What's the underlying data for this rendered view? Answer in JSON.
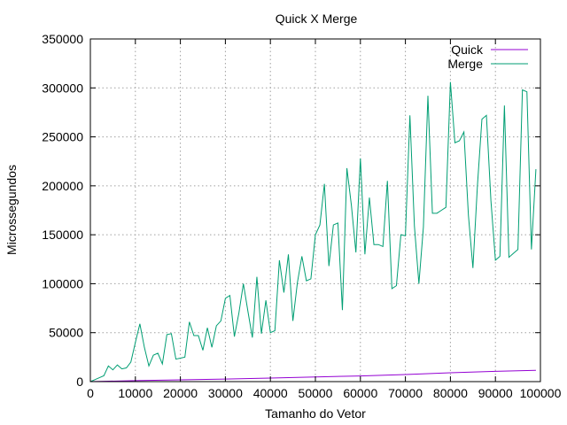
{
  "chart_data": {
    "type": "line",
    "title": "Quick X Merge",
    "xlabel": "Tamanho do Vetor",
    "ylabel": "Microssegundos",
    "xlim": [
      0,
      100000
    ],
    "ylim": [
      0,
      350000
    ],
    "grid": true,
    "legend_position": "top-right",
    "x_ticks": [
      0,
      10000,
      20000,
      30000,
      40000,
      50000,
      60000,
      70000,
      80000,
      90000,
      100000
    ],
    "y_ticks": [
      0,
      50000,
      100000,
      150000,
      200000,
      250000,
      300000,
      350000
    ],
    "series": [
      {
        "name": "Quick",
        "color": "#9400d3",
        "x": [
          0,
          10000,
          20000,
          30000,
          40000,
          50000,
          60000,
          70000,
          80000,
          90000,
          99000
        ],
        "values": [
          0,
          1000,
          1800,
          2600,
          3600,
          4800,
          5800,
          7200,
          9000,
          10500,
          11500
        ]
      },
      {
        "name": "Merge",
        "color": "#009e73",
        "x": [
          0,
          1000,
          2000,
          3000,
          4000,
          5000,
          6000,
          7000,
          8000,
          9000,
          10000,
          11000,
          12000,
          13000,
          14000,
          15000,
          16000,
          17000,
          18000,
          19000,
          20000,
          21000,
          22000,
          23000,
          24000,
          25000,
          26000,
          27000,
          28000,
          29000,
          30000,
          31000,
          32000,
          33000,
          34000,
          35000,
          36000,
          37000,
          38000,
          39000,
          40000,
          41000,
          42000,
          43000,
          44000,
          45000,
          46000,
          47000,
          48000,
          49000,
          50000,
          51000,
          52000,
          53000,
          54000,
          55000,
          56000,
          57000,
          58000,
          59000,
          60000,
          61000,
          62000,
          63000,
          64000,
          65000,
          66000,
          67000,
          68000,
          69000,
          70000,
          71000,
          72000,
          73000,
          74000,
          75000,
          76000,
          77000,
          78000,
          79000,
          80000,
          81000,
          82000,
          83000,
          84000,
          85000,
          86000,
          87000,
          88000,
          89000,
          90000,
          91000,
          92000,
          93000,
          94000,
          95000,
          96000,
          97000,
          98000,
          99000
        ],
        "values": [
          0,
          2000,
          4000,
          6000,
          16000,
          12000,
          17000,
          13000,
          14000,
          20000,
          40000,
          59000,
          35000,
          16000,
          27000,
          29000,
          18000,
          48000,
          49000,
          23000,
          24000,
          25000,
          61000,
          47000,
          47000,
          32000,
          55000,
          35000,
          57000,
          62000,
          85000,
          88000,
          46000,
          70000,
          100000,
          72000,
          45000,
          107000,
          49000,
          83000,
          50000,
          52000,
          124000,
          91000,
          130000,
          62000,
          101000,
          128000,
          103000,
          105000,
          150000,
          160000,
          202000,
          118000,
          160000,
          162000,
          73000,
          218000,
          180000,
          132000,
          228000,
          130000,
          188000,
          140000,
          140000,
          138000,
          205000,
          95000,
          98000,
          150000,
          149000,
          272000,
          159000,
          100000,
          158000,
          292000,
          172000,
          172000,
          175000,
          178000,
          306000,
          244000,
          246000,
          255000,
          170000,
          116000,
          200000,
          268000,
          272000,
          185000,
          124000,
          128000,
          282000,
          127000,
          131000,
          135000,
          298000,
          296000,
          135000,
          217000
        ]
      }
    ]
  }
}
